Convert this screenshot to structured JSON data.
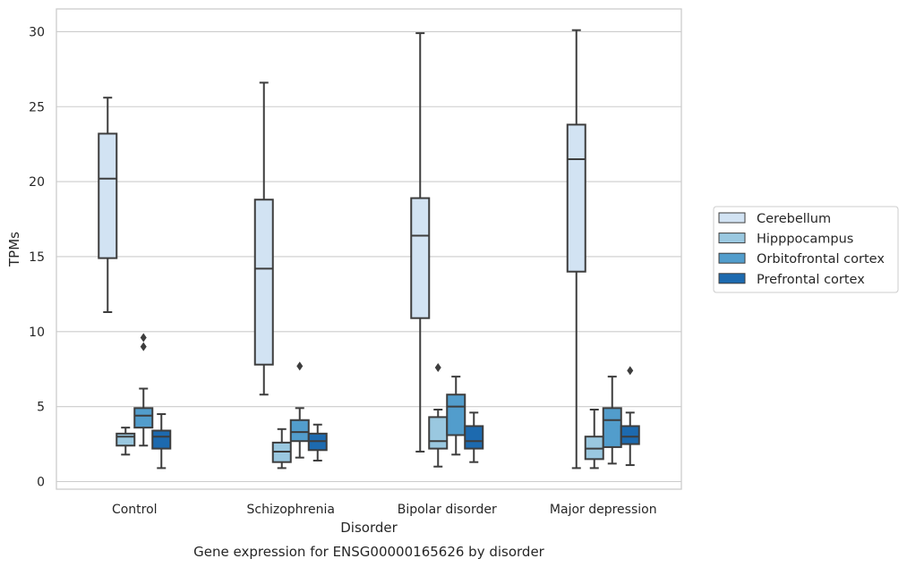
{
  "chart_data": {
    "type": "box",
    "xlabel": "Disorder",
    "ylabel": "TPMs",
    "caption": "Gene expression for ENSG00000165626 by disorder",
    "ylim": [
      -0.5,
      31.6
    ],
    "yticks": [
      0,
      5,
      10,
      15,
      20,
      25,
      30
    ],
    "grid": "horizontal",
    "legend_placement": "right, outside plot",
    "categories": [
      "Control",
      "Schizophrenia",
      "Bipolar disorder",
      "Major depression"
    ],
    "series": [
      {
        "name": "Cerebellum",
        "color": "#d2e3f3",
        "boxes": [
          {
            "whisker_low": 11.3,
            "q1": 14.9,
            "median": 20.2,
            "q3": 23.2,
            "whisker_high": 25.6,
            "outliers": []
          },
          {
            "whisker_low": 5.8,
            "q1": 7.8,
            "median": 14.2,
            "q3": 18.8,
            "whisker_high": 26.6,
            "outliers": []
          },
          {
            "whisker_low": 2.0,
            "q1": 10.9,
            "median": 16.4,
            "q3": 18.9,
            "whisker_high": 29.9,
            "outliers": []
          },
          {
            "whisker_low": 0.9,
            "q1": 14.0,
            "median": 21.5,
            "q3": 23.8,
            "whisker_high": 30.1,
            "outliers": []
          }
        ]
      },
      {
        "name": "Hipppocampus",
        "color": "#9ac8e0",
        "boxes": [
          {
            "whisker_low": 1.8,
            "q1": 2.4,
            "median": 3.0,
            "q3": 3.2,
            "whisker_high": 3.6,
            "outliers": []
          },
          {
            "whisker_low": 0.9,
            "q1": 1.3,
            "median": 2.0,
            "q3": 2.6,
            "whisker_high": 3.5,
            "outliers": []
          },
          {
            "whisker_low": 1.0,
            "q1": 2.2,
            "median": 2.7,
            "q3": 4.3,
            "whisker_high": 4.8,
            "outliers": [
              7.6
            ]
          },
          {
            "whisker_low": 0.9,
            "q1": 1.5,
            "median": 2.2,
            "q3": 3.0,
            "whisker_high": 4.8,
            "outliers": []
          }
        ]
      },
      {
        "name": "Orbitofrontal cortex",
        "color": "#529dcc",
        "boxes": [
          {
            "whisker_low": 2.4,
            "q1": 3.6,
            "median": 4.4,
            "q3": 4.9,
            "whisker_high": 6.2,
            "outliers": [
              9.0,
              9.6
            ]
          },
          {
            "whisker_low": 1.6,
            "q1": 2.7,
            "median": 3.3,
            "q3": 4.1,
            "whisker_high": 4.9,
            "outliers": [
              7.7
            ]
          },
          {
            "whisker_low": 1.8,
            "q1": 3.1,
            "median": 5.0,
            "q3": 5.8,
            "whisker_high": 7.0,
            "outliers": []
          },
          {
            "whisker_low": 1.2,
            "q1": 2.3,
            "median": 4.1,
            "q3": 4.9,
            "whisker_high": 7.0,
            "outliers": []
          }
        ]
      },
      {
        "name": "Prefrontal cortex",
        "color": "#1d6aaf",
        "boxes": [
          {
            "whisker_low": 0.9,
            "q1": 2.2,
            "median": 3.0,
            "q3": 3.4,
            "whisker_high": 4.5,
            "outliers": []
          },
          {
            "whisker_low": 1.4,
            "q1": 2.1,
            "median": 2.7,
            "q3": 3.2,
            "whisker_high": 3.8,
            "outliers": []
          },
          {
            "whisker_low": 1.3,
            "q1": 2.2,
            "median": 2.7,
            "q3": 3.7,
            "whisker_high": 4.6,
            "outliers": []
          },
          {
            "whisker_low": 1.1,
            "q1": 2.5,
            "median": 3.0,
            "q3": 3.7,
            "whisker_high": 4.6,
            "outliers": [
              7.4
            ]
          }
        ]
      }
    ]
  }
}
